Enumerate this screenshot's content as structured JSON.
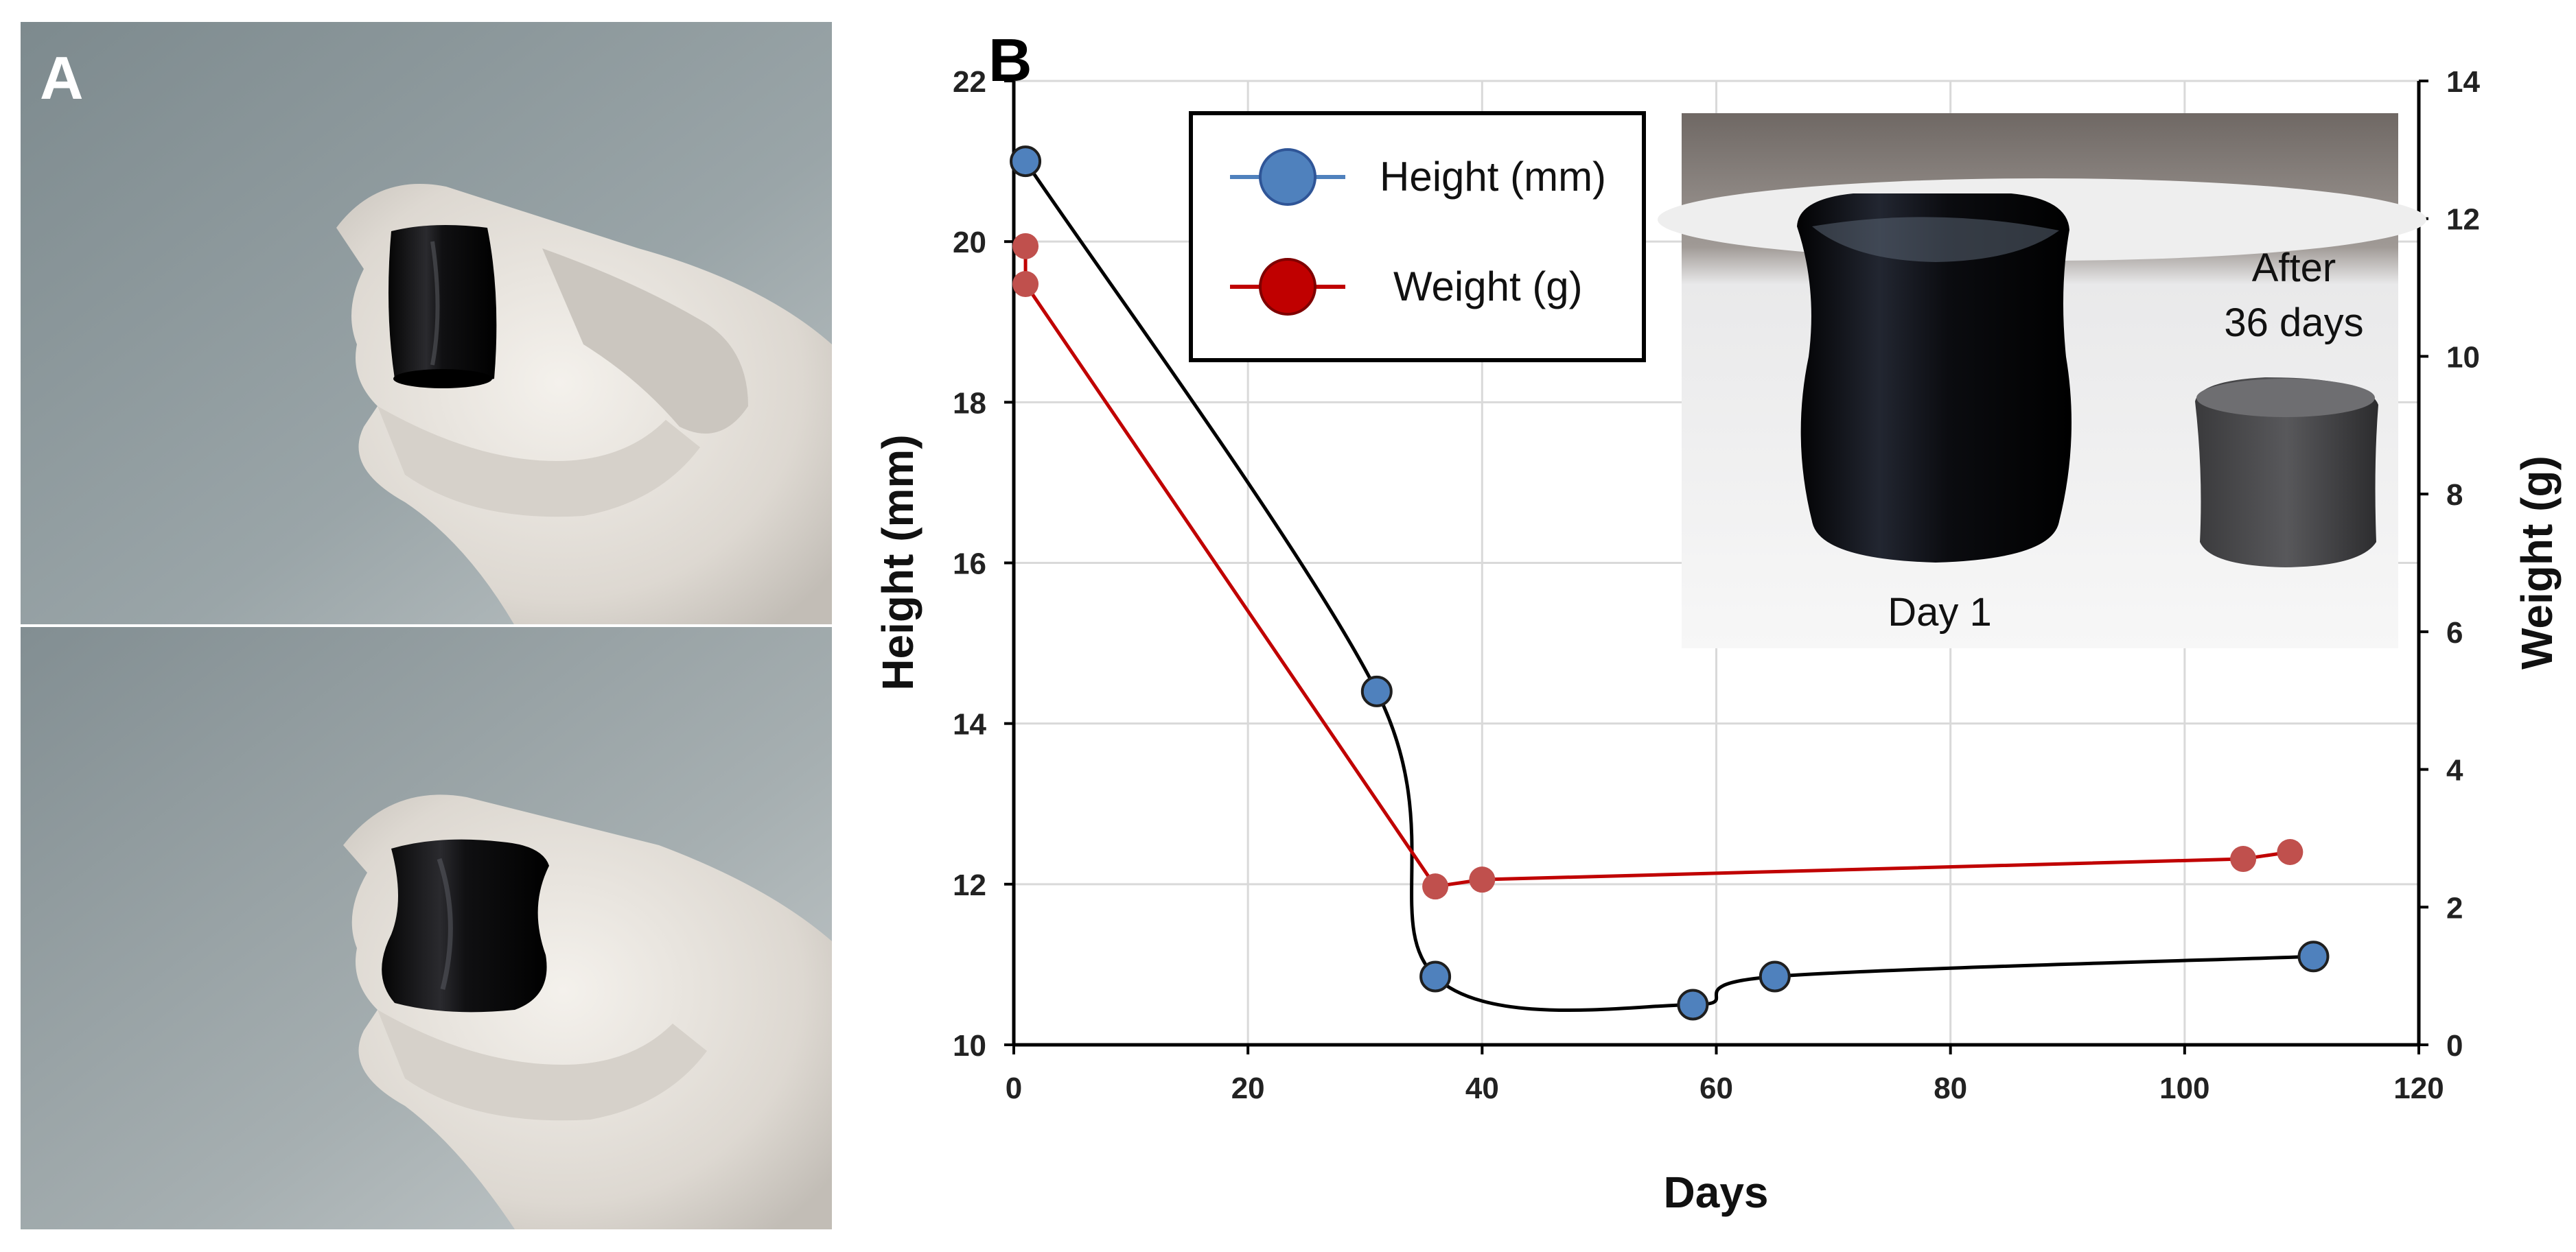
{
  "panel_a": {
    "label": "A",
    "photos": [
      "gloved-hand-holding-cylinder-top",
      "gloved-hand-holding-cylinder-bottom"
    ]
  },
  "chart_data": {
    "type": "line",
    "panel_label": "B",
    "xlabel": "Days",
    "ylabel": "Height (mm)",
    "y2label": "Weight (g)",
    "xlim": [
      0,
      120
    ],
    "ylim": [
      10,
      22
    ],
    "y2lim": [
      0,
      14
    ],
    "x_ticks": [
      0,
      20,
      40,
      60,
      80,
      100,
      120
    ],
    "y_ticks": [
      10,
      12,
      14,
      16,
      18,
      20,
      22
    ],
    "y2_ticks": [
      0,
      2,
      4,
      6,
      8,
      10,
      12,
      14
    ],
    "grid": true,
    "legend": {
      "position": "top-left"
    },
    "series": [
      {
        "name": "Height (mm)",
        "axis": "left",
        "marker_color": "#4f81bd",
        "line_color": "#000000",
        "smooth": true,
        "x": [
          1,
          31,
          36,
          58,
          65,
          111
        ],
        "y": [
          21.0,
          14.4,
          10.85,
          10.5,
          10.85,
          11.1
        ]
      },
      {
        "name": "Weight (g)",
        "axis": "right",
        "marker_color": "#c0504d",
        "line_color": "#c00000",
        "smooth": false,
        "x": [
          1,
          1,
          36,
          40,
          105,
          109
        ],
        "y": [
          11.6,
          11.05,
          2.3,
          2.4,
          2.7,
          2.8
        ]
      }
    ],
    "inset": {
      "labels": [
        "Day 1",
        "After",
        "36 days"
      ]
    }
  }
}
